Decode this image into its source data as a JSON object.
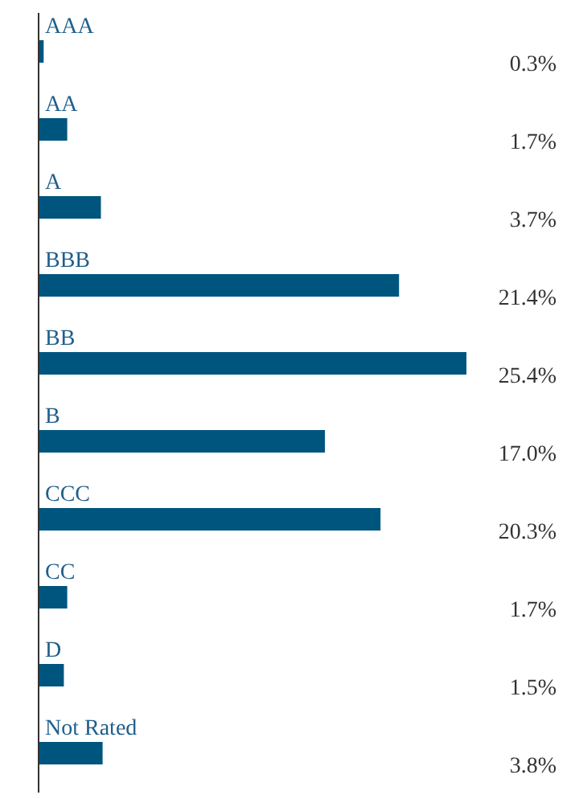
{
  "chart_data": {
    "type": "bar",
    "orientation": "horizontal",
    "categories": [
      "AAA",
      "AA",
      "A",
      "BBB",
      "BB",
      "B",
      "CCC",
      "CC",
      "D",
      "Not Rated"
    ],
    "values": [
      0.3,
      1.7,
      3.7,
      21.4,
      25.4,
      17.0,
      20.3,
      1.7,
      1.5,
      3.8
    ],
    "value_labels": [
      "0.3%",
      "1.7%",
      "3.7%",
      "21.4%",
      "25.4%",
      "17.0%",
      "20.3%",
      "1.7%",
      "1.5%",
      "3.8%"
    ],
    "color": "#00557f"
  }
}
